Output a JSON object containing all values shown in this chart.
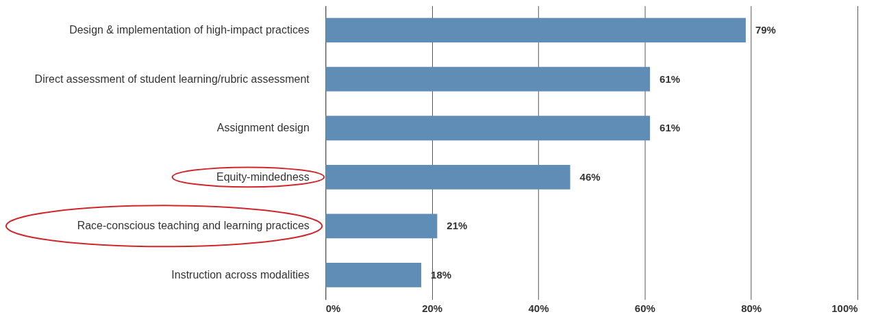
{
  "chart_data": {
    "type": "bar",
    "orientation": "horizontal",
    "categories": [
      "Design & implementation of high-impact practices",
      "Direct assessment of student learning/rubric assessment",
      "Assignment design",
      "Equity-mindedness",
      "Race-conscious teaching and learning practices",
      "Instruction across modalities"
    ],
    "values": [
      79,
      61,
      61,
      46,
      21,
      18
    ],
    "value_labels": [
      "79%",
      "61%",
      "61%",
      "46%",
      "21%",
      "18%"
    ],
    "color": "#5f8db5",
    "xlim": [
      0,
      100
    ],
    "xticks": [
      {
        "value": 0,
        "label": "0%"
      },
      {
        "value": 20,
        "label": "20%"
      },
      {
        "value": 40,
        "label": "40%"
      },
      {
        "value": 60,
        "label": "60%"
      },
      {
        "value": 80,
        "label": "80%"
      },
      {
        "value": 100,
        "label": "100%"
      }
    ],
    "grid": "x",
    "legend": false
  }
}
